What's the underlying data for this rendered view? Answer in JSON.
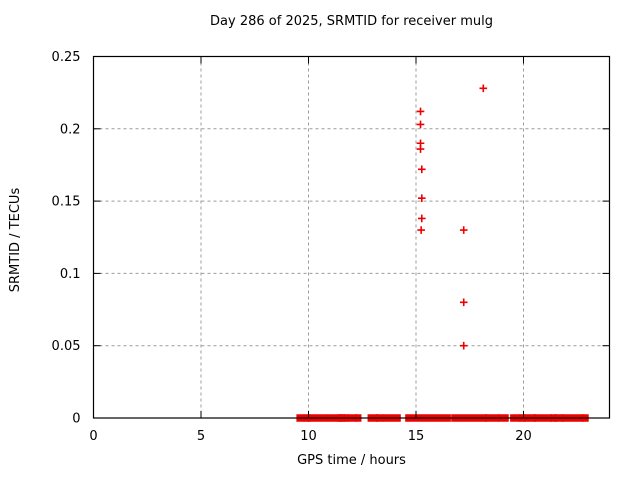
{
  "chart_data": {
    "type": "scatter",
    "title": "Day 286 of 2025, SRMTID for receiver mulg",
    "xlabel": "GPS time / hours",
    "ylabel": "SRMTID / TECUs",
    "xlim": [
      0,
      24
    ],
    "ylim": [
      0,
      0.25
    ],
    "x_tick_labels": [
      "0",
      "5",
      "10",
      "15",
      "20"
    ],
    "y_tick_labels": [
      "0",
      "0.05",
      "0.1",
      "0.15",
      "0.2",
      "0.25"
    ],
    "grid": "dashed-major",
    "legend": "none",
    "marker": "plus",
    "colors": {
      "marker": "#ee0000",
      "grid": "#9b9b9b",
      "axis": "#000000",
      "text": "#000000",
      "background": "#ffffff"
    },
    "points": [
      [
        15.21,
        0.212
      ],
      [
        15.21,
        0.203
      ],
      [
        15.21,
        0.19
      ],
      [
        15.21,
        0.186
      ],
      [
        15.27,
        0.172
      ],
      [
        15.27,
        0.152
      ],
      [
        15.27,
        0.138
      ],
      [
        15.24,
        0.13
      ],
      [
        17.22,
        0.13
      ],
      [
        17.22,
        0.08
      ],
      [
        17.22,
        0.05
      ],
      [
        18.13,
        0.228
      ]
    ],
    "baseline_y": 0,
    "baseline_segments": [
      [
        9.53,
        9.72
      ],
      [
        9.86,
        10.0
      ],
      [
        10.05,
        10.82
      ],
      [
        10.98,
        11.4
      ],
      [
        11.44,
        11.52
      ],
      [
        11.57,
        11.64
      ],
      [
        11.72,
        11.78
      ],
      [
        11.9,
        12.15
      ],
      [
        12.25,
        12.37
      ],
      [
        12.84,
        13.15
      ],
      [
        13.22,
        13.38
      ],
      [
        13.53,
        14.2
      ],
      [
        14.59,
        16.53
      ],
      [
        16.73,
        18.2
      ],
      [
        18.29,
        18.78
      ],
      [
        18.9,
        19.22
      ],
      [
        19.47,
        19.78
      ],
      [
        19.89,
        20.0
      ],
      [
        20.06,
        20.22
      ],
      [
        20.37,
        20.5
      ],
      [
        20.56,
        21.24
      ],
      [
        21.33,
        21.46
      ],
      [
        21.52,
        21.77
      ],
      [
        21.86,
        22.71
      ],
      [
        22.8,
        22.94
      ]
    ]
  }
}
